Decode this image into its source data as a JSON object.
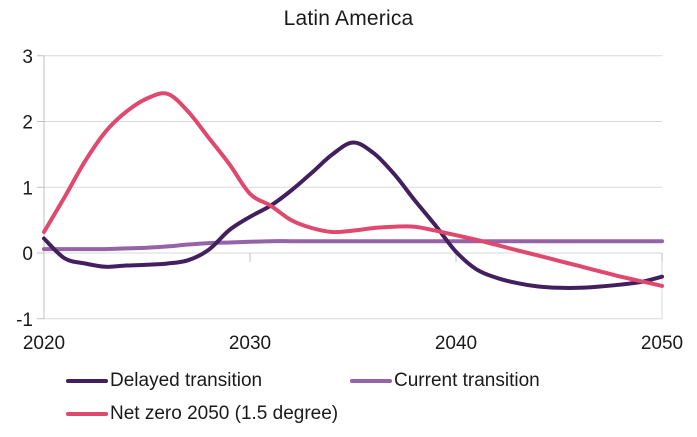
{
  "title": "Latin America",
  "chart_data": {
    "type": "line",
    "title": "Latin America",
    "xlim": [
      2020,
      2050
    ],
    "ylim": [
      -1,
      3
    ],
    "x_ticks": [
      "2020",
      "2030",
      "2040",
      "2050"
    ],
    "x_tick_values": [
      2020,
      2030,
      2040,
      2050
    ],
    "y_ticks": [
      "3",
      "2",
      "1",
      "0",
      "-1"
    ],
    "y_tick_values": [
      3,
      2,
      1,
      0,
      -1
    ],
    "grid": "horizontal",
    "legend_position": "bottom-left, two rows",
    "x_start": 2020,
    "x_step": 1,
    "series": [
      {
        "name": "Delayed transition",
        "color": "#42205f",
        "values": [
          0.22,
          -0.08,
          -0.16,
          -0.21,
          -0.19,
          -0.18,
          -0.16,
          -0.11,
          0.05,
          0.35,
          0.55,
          0.72,
          0.95,
          1.22,
          1.5,
          1.68,
          1.52,
          1.2,
          0.8,
          0.42,
          0.02,
          -0.25,
          -0.38,
          -0.46,
          -0.51,
          -0.53,
          -0.53,
          -0.51,
          -0.48,
          -0.44,
          -0.36
        ]
      },
      {
        "name": "Current transition",
        "color": "#9463a8",
        "values": [
          0.06,
          0.06,
          0.06,
          0.06,
          0.07,
          0.08,
          0.1,
          0.13,
          0.15,
          0.16,
          0.17,
          0.18,
          0.18,
          0.18,
          0.18,
          0.18,
          0.18,
          0.18,
          0.18,
          0.18,
          0.18,
          0.18,
          0.18,
          0.18,
          0.18,
          0.18,
          0.18,
          0.18,
          0.18,
          0.18,
          0.18
        ]
      },
      {
        "name": "Net zero 2050 (1.5 degree)",
        "color": "#e0486e",
        "values": [
          0.32,
          0.85,
          1.4,
          1.85,
          2.15,
          2.35,
          2.42,
          2.15,
          1.75,
          1.35,
          0.9,
          0.72,
          0.5,
          0.38,
          0.32,
          0.34,
          0.38,
          0.4,
          0.4,
          0.34,
          0.27,
          0.2,
          0.12,
          0.04,
          -0.04,
          -0.12,
          -0.2,
          -0.28,
          -0.36,
          -0.43,
          -0.5
        ]
      }
    ],
    "colors": {
      "gridline": "#d9d9d9",
      "axis": "#bfbfbf",
      "tick_label": "#1a1a1a"
    }
  }
}
